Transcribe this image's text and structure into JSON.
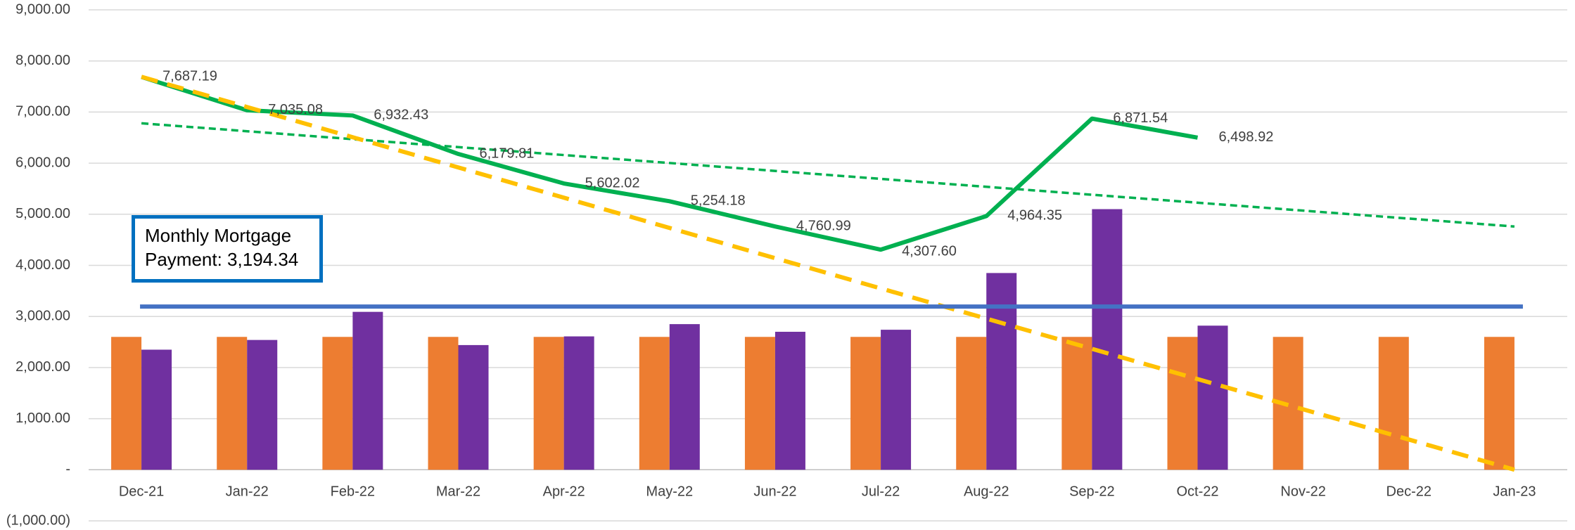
{
  "chart_data": {
    "type": "bar-line",
    "categories": [
      "Dec-21",
      "Jan-22",
      "Feb-22",
      "Mar-22",
      "Apr-22",
      "May-22",
      "Jun-22",
      "Jul-22",
      "Aug-22",
      "Sep-22",
      "Oct-22",
      "Nov-22",
      "Dec-22",
      "Jan-23"
    ],
    "series": [
      {
        "kind": "bar",
        "color": "#ed7d31",
        "values": [
          2600,
          2600,
          2600,
          2600,
          2600,
          2600,
          2600,
          2600,
          2600,
          2600,
          2600,
          2600,
          2600,
          2600
        ]
      },
      {
        "kind": "bar",
        "color": "#7030a0",
        "values": [
          2350,
          2540,
          3090,
          2440,
          2610,
          2850,
          2700,
          2740,
          3850,
          5100,
          2820,
          null,
          null,
          null
        ]
      },
      {
        "kind": "line",
        "color": "#00b050",
        "values": [
          7687.19,
          7035.08,
          6932.43,
          6179.81,
          5602.02,
          5254.18,
          4760.99,
          4307.6,
          4964.35,
          6871.54,
          6498.92,
          null,
          null,
          null
        ],
        "value_labels": [
          "7,687.19",
          "7,035.08",
          "6,932.43",
          "6,179.81",
          "5,602.02",
          "5,254.18",
          "4,760.99",
          "4,307.60",
          "4,964.35",
          "6,871.54",
          "6,498.92",
          null,
          null,
          null
        ]
      }
    ],
    "trendlines": [
      {
        "color": "#00b050",
        "start": 6780,
        "end": 4760
      },
      {
        "color": "#ffc000",
        "start": 7690,
        "end": 0
      }
    ],
    "reference_line": {
      "value": 3194.34,
      "color": "#4472c4",
      "label": "Monthly Mortgage Payment: 3,194.34"
    },
    "ylim": [
      -1000,
      9000
    ],
    "yticks": [
      {
        "value": -1000,
        "label": "(1,000.00)"
      },
      {
        "value": 0,
        "label": "-"
      },
      {
        "value": 1000,
        "label": "1,000.00"
      },
      {
        "value": 2000,
        "label": "2,000.00"
      },
      {
        "value": 3000,
        "label": "3,000.00"
      },
      {
        "value": 4000,
        "label": "4,000.00"
      },
      {
        "value": 5000,
        "label": "5,000.00"
      },
      {
        "value": 6000,
        "label": "6,000.00"
      },
      {
        "value": 7000,
        "label": "7,000.00"
      },
      {
        "value": 8000,
        "label": "8,000.00"
      },
      {
        "value": 9000,
        "label": "9,000.00"
      }
    ],
    "grid": true
  }
}
